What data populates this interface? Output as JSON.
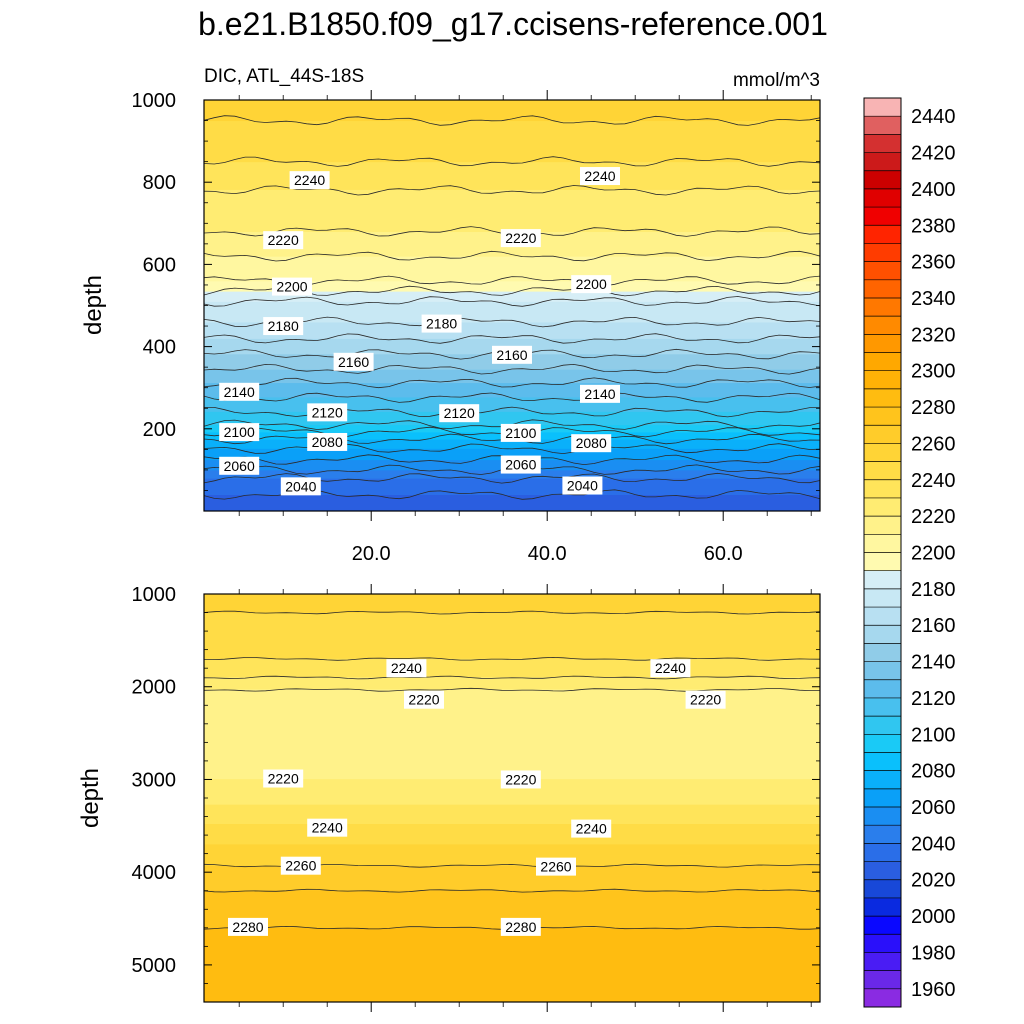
{
  "chart_data": {
    "type": "contour",
    "title": "b.e21.B1850.f09_g17.ccisens-reference.001",
    "variable_label": "DIC, ATL_44S-18S",
    "units_label": "mmol/m^3",
    "xlim": [
      1,
      71
    ],
    "x_tick_labels": [
      {
        "x": 20,
        "label": "20.0"
      },
      {
        "x": 40,
        "label": "40.0"
      },
      {
        "x": 60,
        "label": "60.0"
      }
    ],
    "colorbar": {
      "levels": [
        1950,
        1960,
        1970,
        1980,
        1990,
        2000,
        2010,
        2020,
        2030,
        2040,
        2050,
        2060,
        2070,
        2080,
        2090,
        2100,
        2110,
        2120,
        2130,
        2140,
        2150,
        2160,
        2170,
        2180,
        2190,
        2200,
        2210,
        2220,
        2230,
        2240,
        2250,
        2260,
        2270,
        2280,
        2290,
        2300,
        2310,
        2320,
        2330,
        2340,
        2350,
        2360,
        2370,
        2380,
        2390,
        2400,
        2410,
        2420,
        2430,
        2440,
        2450
      ],
      "colors": [
        "#8a2be2",
        "#6a28e8",
        "#4a1cf4",
        "#2a10fa",
        "#0a08ff",
        "#0a2ae0",
        "#1848d8",
        "#2a5ee0",
        "#2a6ee8",
        "#2a7eec",
        "#1a8ef2",
        "#0aa0f8",
        "#0ab0fa",
        "#0ac0fc",
        "#1acaf6",
        "#30c6f0",
        "#48c0ee",
        "#5cbcec",
        "#78c4ea",
        "#90cce8",
        "#a6d8ee",
        "#b8e0f2",
        "#c8e8f4",
        "#d6eef6",
        "#fffab0",
        "#fff7a0",
        "#fff28a",
        "#ffec72",
        "#ffe45a",
        "#ffdc46",
        "#ffd436",
        "#ffcc2a",
        "#ffc41c",
        "#ffbc10",
        "#ffb206",
        "#ffa800",
        "#ff9800",
        "#ff8a00",
        "#ff7800",
        "#ff6400",
        "#ff5000",
        "#ff3c00",
        "#ff2400",
        "#f00000",
        "#e00000",
        "#cc0000",
        "#cc1a1a",
        "#d43030",
        "#e06060",
        "#f8b4b4"
      ],
      "tick_labels": [
        "1960",
        "1980",
        "2000",
        "2020",
        "2040",
        "2060",
        "2080",
        "2100",
        "2120",
        "2140",
        "2160",
        "2180",
        "2200",
        "2220",
        "2240",
        "2260",
        "2280",
        "2300",
        "2320",
        "2340",
        "2360",
        "2380",
        "2400",
        "2420",
        "2440"
      ]
    },
    "panels": [
      {
        "name": "upper",
        "ylabel": "depth",
        "ylim": [
          1000,
          0
        ],
        "y_ticks": [
          200,
          400,
          600,
          800,
          1000
        ],
        "y_tick_labels": [
          "200",
          "400",
          "600",
          "800",
          "1000"
        ],
        "profile_depths": [
          0,
          40,
          80,
          110,
          140,
          175,
          210,
          250,
          295,
          345,
          400,
          450,
          510,
          560,
          620,
          680,
          760,
          850,
          950,
          1000
        ],
        "profile_values": [
          2020,
          2030,
          2040,
          2055,
          2065,
          2080,
          2100,
          2113,
          2125,
          2140,
          2155,
          2168,
          2180,
          2200,
          2210,
          2220,
          2227,
          2240,
          2250,
          2252
        ],
        "contour_labels": [
          {
            "x": 12,
            "depth": 60,
            "text": "2040"
          },
          {
            "x": 44,
            "depth": 62,
            "text": "2040"
          },
          {
            "x": 5,
            "depth": 110,
            "text": "2060"
          },
          {
            "x": 37,
            "depth": 113,
            "text": "2060"
          },
          {
            "x": 15,
            "depth": 168,
            "text": "2080"
          },
          {
            "x": 45,
            "depth": 165,
            "text": "2080"
          },
          {
            "x": 5,
            "depth": 192,
            "text": "2100"
          },
          {
            "x": 37,
            "depth": 190,
            "text": "2100"
          },
          {
            "x": 15,
            "depth": 240,
            "text": "2120"
          },
          {
            "x": 30,
            "depth": 238,
            "text": "2120"
          },
          {
            "x": 5,
            "depth": 290,
            "text": "2140"
          },
          {
            "x": 46,
            "depth": 285,
            "text": "2140"
          },
          {
            "x": 18,
            "depth": 363,
            "text": "2160"
          },
          {
            "x": 36,
            "depth": 380,
            "text": "2160"
          },
          {
            "x": 10,
            "depth": 450,
            "text": "2180"
          },
          {
            "x": 28,
            "depth": 456,
            "text": "2180"
          },
          {
            "x": 11,
            "depth": 546,
            "text": "2200"
          },
          {
            "x": 45,
            "depth": 552,
            "text": "2200"
          },
          {
            "x": 10,
            "depth": 659,
            "text": "2220"
          },
          {
            "x": 37,
            "depth": 664,
            "text": "2220"
          },
          {
            "x": 13,
            "depth": 805,
            "text": "2240"
          },
          {
            "x": 46,
            "depth": 815,
            "text": "2240"
          }
        ]
      },
      {
        "name": "lower",
        "ylabel": "depth",
        "ylim": [
          1000,
          5400
        ],
        "y_ticks": [
          1000,
          2000,
          3000,
          4000,
          5000
        ],
        "y_tick_labels": [
          "1000",
          "2000",
          "3000",
          "4000",
          "5000"
        ],
        "profile_depths": [
          1000,
          1200,
          1520,
          1700,
          1900,
          2100,
          2900,
          3000,
          3270,
          3480,
          3700,
          3930,
          4200,
          4600,
          5000,
          5400
        ],
        "profile_values": [
          2250,
          2250,
          2245,
          2240,
          2230,
          2215,
          2215,
          2220,
          2230,
          2240,
          2250,
          2260,
          2270,
          2280,
          2285,
          2285
        ],
        "contour_labels": [
          {
            "x": 24,
            "depth": 1800,
            "text": "2240"
          },
          {
            "x": 54,
            "depth": 1800,
            "text": "2240"
          },
          {
            "x": 26,
            "depth": 2140,
            "text": "2220"
          },
          {
            "x": 58,
            "depth": 2140,
            "text": "2220"
          },
          {
            "x": 10,
            "depth": 2990,
            "text": "2220"
          },
          {
            "x": 37,
            "depth": 3000,
            "text": "2220"
          },
          {
            "x": 15,
            "depth": 3520,
            "text": "2240"
          },
          {
            "x": 45,
            "depth": 3530,
            "text": "2240"
          },
          {
            "x": 12,
            "depth": 3930,
            "text": "2260"
          },
          {
            "x": 41,
            "depth": 3940,
            "text": "2260"
          },
          {
            "x": 6,
            "depth": 4590,
            "text": "2280"
          },
          {
            "x": 37,
            "depth": 4590,
            "text": "2280"
          }
        ]
      }
    ]
  }
}
